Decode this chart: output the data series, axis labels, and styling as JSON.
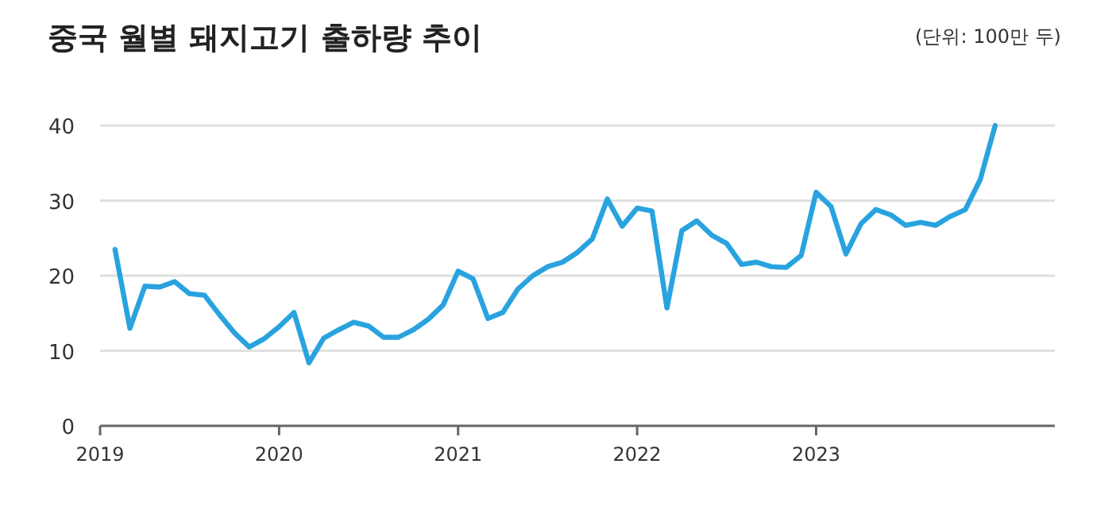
{
  "chart_data": {
    "type": "line",
    "title": "중국 월별 돼지고기 출하량 추이",
    "subtitle": "(단위: 100만 두)",
    "x": [
      "2019-02",
      "2019-03",
      "2019-04",
      "2019-05",
      "2019-06",
      "2019-07",
      "2019-08",
      "2019-09",
      "2019-10",
      "2019-11",
      "2019-12",
      "2020-01",
      "2020-02",
      "2020-03",
      "2020-04",
      "2020-05",
      "2020-06",
      "2020-07",
      "2020-08",
      "2020-09",
      "2020-10",
      "2020-11",
      "2020-12",
      "2021-01",
      "2021-02",
      "2021-03",
      "2021-04",
      "2021-05",
      "2021-06",
      "2021-07",
      "2021-08",
      "2021-09",
      "2021-10",
      "2021-11",
      "2021-12",
      "2022-01",
      "2022-02",
      "2022-03",
      "2022-04",
      "2022-05",
      "2022-06",
      "2022-07",
      "2022-08",
      "2022-09",
      "2022-10",
      "2022-11",
      "2022-12",
      "2023-01",
      "2023-02",
      "2023-03",
      "2023-04",
      "2023-05",
      "2023-06",
      "2023-07",
      "2023-08",
      "2023-09",
      "2023-10",
      "2023-11",
      "2023-12",
      "2024-01"
    ],
    "series": [
      {
        "color": "#29a3df",
        "values": [
          23.5,
          13,
          18.6,
          18.5,
          19.2,
          17.6,
          17.4,
          14.8,
          12.4,
          10.5,
          11.6,
          13.2,
          15.1,
          8.4,
          11.7,
          12.8,
          13.8,
          13.3,
          11.8,
          11.8,
          12.8,
          14.2,
          16.1,
          20.6,
          19.6,
          14.3,
          15.1,
          18.2,
          20.0,
          21.2,
          21.8,
          23.1,
          24.9,
          30.2,
          26.6,
          29.0,
          28.6,
          15.7,
          26.0,
          27.3,
          25.4,
          24.3,
          21.5,
          21.8,
          21.2,
          21.1,
          22.7,
          31.1,
          29.2,
          22.9,
          26.9,
          28.8,
          28.1,
          26.7,
          27.1,
          26.7,
          27.9,
          28.8,
          32.8,
          40
        ]
      }
    ],
    "xlim": [
      "2019-01",
      "2024-05"
    ],
    "xticks": [
      {
        "value": "2019-01",
        "label": "2019"
      },
      {
        "value": "2020-01",
        "label": "2020"
      },
      {
        "value": "2021-01",
        "label": "2021"
      },
      {
        "value": "2022-01",
        "label": "2022"
      },
      {
        "value": "2023-01",
        "label": "2023"
      }
    ],
    "ylim": [
      0,
      40
    ],
    "yticks": [
      0,
      10,
      20,
      30,
      40
    ],
    "grid": "y",
    "marker": "none",
    "line_style": "solid"
  }
}
